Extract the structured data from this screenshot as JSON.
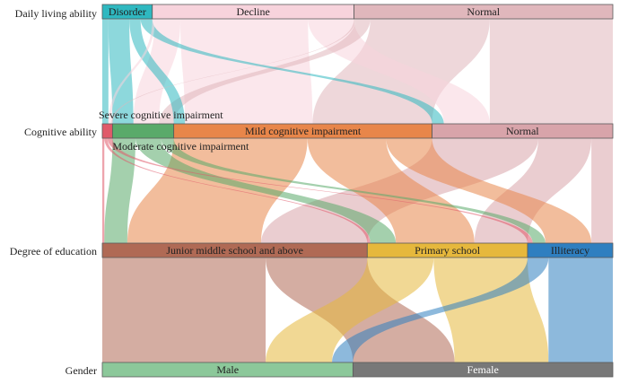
{
  "axes": [
    {
      "key": "daily",
      "label": "Daily living ability"
    },
    {
      "key": "cognitive",
      "label": "Cognitive ability"
    },
    {
      "key": "education",
      "label": "Degree of education"
    },
    {
      "key": "gender",
      "label": "Gender"
    }
  ],
  "nodes": {
    "daily": [
      {
        "id": "disorder",
        "label": "Disorder",
        "share": 0.098,
        "color": "#2fb8c0",
        "light": false
      },
      {
        "id": "decline",
        "label": "Decline",
        "share": 0.395,
        "color": "#f7d3dc",
        "light": false
      },
      {
        "id": "daily_normal",
        "label": "Normal",
        "share": 0.507,
        "color": "#e0b7bc",
        "light": false
      }
    ],
    "cognitive": [
      {
        "id": "severe",
        "label": "Severe cognitive impairment",
        "share": 0.02,
        "color": "#e05a6a",
        "light": false,
        "callout": "above"
      },
      {
        "id": "moderate",
        "label": "Moderate cognitive impairment",
        "share": 0.12,
        "color": "#5aaa6a",
        "light": false,
        "callout": "below"
      },
      {
        "id": "mild",
        "label": "Mild cognitive impairment",
        "share": 0.506,
        "color": "#e8864a",
        "light": false
      },
      {
        "id": "cog_normal",
        "label": "Normal",
        "share": 0.354,
        "color": "#d8a4aa",
        "light": false
      }
    ],
    "education": [
      {
        "id": "junior",
        "label": "Junior middle school and above",
        "share": 0.519,
        "color": "#b06a55",
        "light": false
      },
      {
        "id": "primary",
        "label": "Primary school",
        "share": 0.314,
        "color": "#e6b83c",
        "light": false
      },
      {
        "id": "illiteracy",
        "label": "Illiteracy",
        "share": 0.167,
        "color": "#2f7fc0",
        "light": false
      }
    ],
    "gender": [
      {
        "id": "male",
        "label": "Male",
        "share": 0.491,
        "color": "#8cc89a",
        "light": false
      },
      {
        "id": "female",
        "label": "Female",
        "share": 0.509,
        "color": "#787878",
        "light": true
      }
    ]
  },
  "flows": [
    {
      "from": "disorder",
      "to": "severe",
      "share": 0.012
    },
    {
      "from": "disorder",
      "to": "moderate",
      "share": 0.041
    },
    {
      "from": "disorder",
      "to": "mild",
      "share": 0.022
    },
    {
      "from": "disorder",
      "to": "cog_normal",
      "share": 0.023
    },
    {
      "from": "decline",
      "to": "severe",
      "share": 0.005
    },
    {
      "from": "decline",
      "to": "moderate",
      "share": 0.05
    },
    {
      "from": "decline",
      "to": "mild",
      "share": 0.25
    },
    {
      "from": "decline",
      "to": "cog_normal",
      "share": 0.09
    },
    {
      "from": "daily_normal",
      "to": "severe",
      "share": 0.003
    },
    {
      "from": "daily_normal",
      "to": "moderate",
      "share": 0.029
    },
    {
      "from": "daily_normal",
      "to": "mild",
      "share": 0.234
    },
    {
      "from": "daily_normal",
      "to": "cog_normal",
      "share": 0.241
    },
    {
      "from": "severe",
      "to": "junior",
      "share": 0.004
    },
    {
      "from": "severe",
      "to": "primary",
      "share": 0.006
    },
    {
      "from": "severe",
      "to": "illiteracy",
      "share": 0.01
    },
    {
      "from": "moderate",
      "to": "junior",
      "share": 0.045
    },
    {
      "from": "moderate",
      "to": "primary",
      "share": 0.05
    },
    {
      "from": "moderate",
      "to": "illiteracy",
      "share": 0.025
    },
    {
      "from": "mild",
      "to": "junior",
      "share": 0.262
    },
    {
      "from": "mild",
      "to": "primary",
      "share": 0.154
    },
    {
      "from": "mild",
      "to": "illiteracy",
      "share": 0.09
    },
    {
      "from": "cog_normal",
      "to": "junior",
      "share": 0.208
    },
    {
      "from": "cog_normal",
      "to": "primary",
      "share": 0.104
    },
    {
      "from": "cog_normal",
      "to": "illiteracy",
      "share": 0.042
    },
    {
      "from": "junior",
      "to": "male",
      "share": 0.32
    },
    {
      "from": "junior",
      "to": "female",
      "share": 0.199
    },
    {
      "from": "primary",
      "to": "male",
      "share": 0.13
    },
    {
      "from": "primary",
      "to": "female",
      "share": 0.184
    },
    {
      "from": "illiteracy",
      "to": "male",
      "share": 0.041
    },
    {
      "from": "illiteracy",
      "to": "female",
      "share": 0.126
    }
  ]
}
